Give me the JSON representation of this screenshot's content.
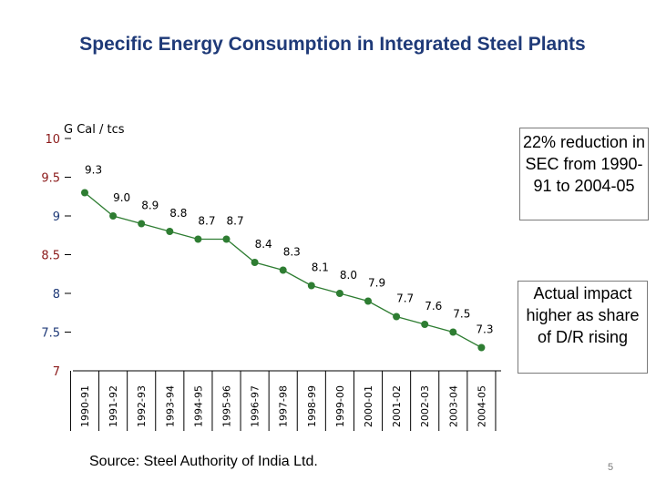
{
  "slide": {
    "title": "Specific Energy Consumption in  Integrated Steel Plants",
    "callout_reduction": "22% reduction in SEC from 1990-91 to 2004-05",
    "callout_actual": "Actual impact higher as share of D/R rising",
    "source": "Source: Steel Authority of India Ltd.",
    "page_number": "5"
  },
  "chart_data": {
    "type": "line",
    "ylabel": "G Cal / tcs",
    "ylim": [
      7,
      10
    ],
    "y_ticks": [
      "10",
      "9.5",
      "9",
      "8.5",
      "8",
      "7.5",
      "7"
    ],
    "categories": [
      "1990-91",
      "1991-92",
      "1992-93",
      "1993-94",
      "1994-95",
      "1995-96",
      "1996-97",
      "1997-98",
      "1998-99",
      "1999-00",
      "2000-01",
      "2001-02",
      "2002-03",
      "2003-04",
      "2004-05"
    ],
    "values": [
      9.3,
      9.0,
      8.9,
      8.8,
      8.7,
      8.7,
      8.4,
      8.3,
      8.1,
      8.0,
      7.9,
      7.7,
      7.6,
      7.5,
      7.3
    ],
    "data_labels": [
      "9.3",
      "9.0",
      "8.9",
      "8.8",
      "8.7",
      "8.7",
      "8.4",
      "8.3",
      "8.1",
      "8.0",
      "7.9",
      "7.7",
      "7.6",
      "7.5",
      "7.3"
    ],
    "line_color": "#2e7d32",
    "marker_color": "#2e7d32",
    "axis_color": "#000000",
    "tick_label_colors": [
      "#8b1a1a",
      "#8b1a1a",
      "#1f3a78",
      "#8b1a1a",
      "#1f3a78",
      "#1f3a78",
      "#8b1a1a"
    ]
  }
}
